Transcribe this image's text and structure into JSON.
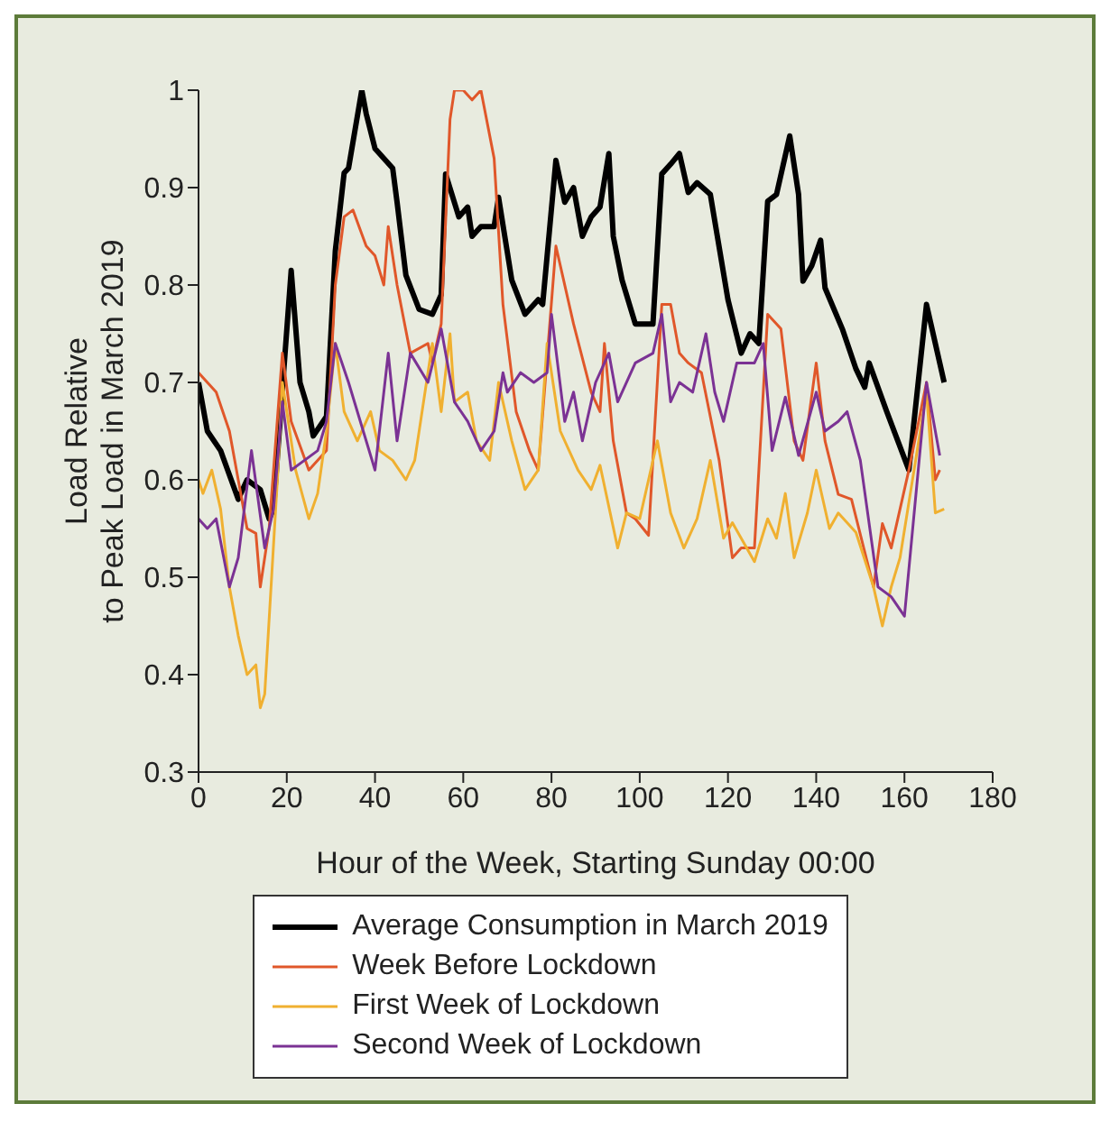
{
  "chart_data": {
    "type": "line",
    "xlabel": "Hour of the Week, Starting Sunday 00:00",
    "ylabel": "Load Relative to Peak Load in March 2019",
    "xlim": [
      0,
      180
    ],
    "xticks": [
      0,
      20,
      40,
      60,
      80,
      100,
      120,
      140,
      160,
      180
    ],
    "ylim": [
      0.3,
      1
    ],
    "yticks": [
      0.3,
      0.4,
      0.5,
      0.6,
      0.7,
      0.8,
      0.9,
      1
    ],
    "grid": false,
    "legend": "bottom",
    "marker": "none",
    "line_style": "solid",
    "series": [
      {
        "name": "Average Consumption in March 2019",
        "color": "#000000",
        "x": [
          0,
          2,
          5,
          9,
          11,
          14,
          16,
          17,
          21,
          23,
          25,
          26,
          29,
          31,
          33,
          34,
          37,
          38,
          40,
          44,
          45,
          47,
          50,
          53,
          55,
          56,
          59,
          61,
          62,
          64,
          67,
          68,
          71,
          74,
          77,
          78,
          81,
          83,
          85,
          87,
          89,
          91,
          93,
          94,
          96,
          99,
          103,
          105,
          107,
          109,
          111,
          113,
          116,
          120,
          123,
          125,
          127,
          129,
          131,
          134,
          136,
          137,
          139,
          141,
          142,
          146,
          149,
          151,
          152,
          156,
          161,
          165,
          169
        ],
        "values": [
          0.7,
          0.65,
          0.63,
          0.58,
          0.6,
          0.59,
          0.56,
          0.57,
          0.815,
          0.7,
          0.67,
          0.645,
          0.665,
          0.835,
          0.915,
          0.92,
          1.0,
          0.976,
          0.94,
          0.92,
          0.885,
          0.81,
          0.775,
          0.77,
          0.79,
          0.914,
          0.87,
          0.88,
          0.85,
          0.86,
          0.86,
          0.89,
          0.805,
          0.77,
          0.785,
          0.78,
          0.928,
          0.885,
          0.9,
          0.85,
          0.87,
          0.88,
          0.935,
          0.85,
          0.805,
          0.76,
          0.76,
          0.914,
          0.924,
          0.935,
          0.895,
          0.905,
          0.893,
          0.785,
          0.73,
          0.75,
          0.74,
          0.886,
          0.893,
          0.953,
          0.893,
          0.804,
          0.82,
          0.846,
          0.797,
          0.754,
          0.714,
          0.695,
          0.72,
          0.67,
          0.61,
          0.78,
          0.7
        ]
      },
      {
        "name": "Week Before Lockdown",
        "color": "#e0572a",
        "x": [
          0,
          4,
          7,
          9,
          11,
          13,
          14,
          16,
          19,
          21,
          25,
          29,
          31,
          33,
          35,
          38,
          40,
          42,
          43,
          45,
          48,
          52,
          53,
          55,
          57,
          58,
          60,
          62,
          64,
          67,
          69,
          72,
          75,
          77,
          81,
          85,
          89,
          91,
          92,
          94,
          97,
          99,
          102,
          105,
          107,
          109,
          111,
          114,
          118,
          121,
          123,
          126,
          129,
          132,
          135,
          137,
          140,
          142,
          145,
          148,
          153,
          155,
          157,
          161,
          165,
          167,
          168
        ],
        "values": [
          0.71,
          0.69,
          0.65,
          0.6,
          0.55,
          0.545,
          0.49,
          0.55,
          0.73,
          0.66,
          0.61,
          0.63,
          0.8,
          0.87,
          0.877,
          0.84,
          0.83,
          0.8,
          0.86,
          0.8,
          0.73,
          0.74,
          0.72,
          0.76,
          0.97,
          1.0,
          1.0,
          0.99,
          1.0,
          0.93,
          0.78,
          0.67,
          0.63,
          0.61,
          0.84,
          0.76,
          0.69,
          0.67,
          0.74,
          0.64,
          0.566,
          0.56,
          0.543,
          0.78,
          0.78,
          0.73,
          0.72,
          0.71,
          0.62,
          0.52,
          0.53,
          0.53,
          0.77,
          0.755,
          0.64,
          0.62,
          0.72,
          0.64,
          0.585,
          0.58,
          0.49,
          0.555,
          0.53,
          0.61,
          0.7,
          0.6,
          0.61
        ]
      },
      {
        "name": "First Week of Lockdown",
        "color": "#f0b030",
        "x": [
          0,
          1,
          3,
          5,
          7,
          9,
          11,
          13,
          14,
          15,
          18,
          19,
          22,
          25,
          27,
          29,
          31,
          33,
          36,
          39,
          41,
          44,
          47,
          49,
          53,
          55,
          57,
          58,
          61,
          63,
          66,
          68,
          71,
          74,
          77,
          79,
          82,
          86,
          89,
          91,
          95,
          97,
          100,
          102,
          104,
          107,
          110,
          113,
          116,
          119,
          121,
          126,
          129,
          131,
          133,
          135,
          138,
          140,
          143,
          145,
          149,
          153,
          155,
          157,
          159,
          165,
          167,
          169
        ],
        "values": [
          0.6,
          0.586,
          0.61,
          0.57,
          0.49,
          0.44,
          0.4,
          0.41,
          0.366,
          0.38,
          0.61,
          0.7,
          0.61,
          0.56,
          0.586,
          0.65,
          0.74,
          0.67,
          0.64,
          0.67,
          0.63,
          0.62,
          0.6,
          0.62,
          0.74,
          0.67,
          0.75,
          0.68,
          0.69,
          0.64,
          0.62,
          0.7,
          0.64,
          0.59,
          0.61,
          0.74,
          0.65,
          0.61,
          0.59,
          0.615,
          0.53,
          0.566,
          0.56,
          0.6,
          0.64,
          0.566,
          0.53,
          0.56,
          0.62,
          0.54,
          0.556,
          0.516,
          0.56,
          0.54,
          0.586,
          0.52,
          0.566,
          0.61,
          0.55,
          0.566,
          0.546,
          0.49,
          0.45,
          0.49,
          0.52,
          0.69,
          0.566,
          0.57
        ]
      },
      {
        "name": "Second Week of Lockdown",
        "color": "#7b3294",
        "x": [
          0,
          2,
          4,
          7,
          9,
          12,
          15,
          17,
          19,
          21,
          24,
          27,
          29,
          31,
          34,
          38,
          40,
          43,
          45,
          48,
          52,
          55,
          58,
          61,
          64,
          67,
          69,
          70,
          73,
          76,
          79,
          80,
          83,
          85,
          87,
          90,
          93,
          95,
          99,
          103,
          105,
          107,
          109,
          112,
          115,
          117,
          119,
          122,
          126,
          128,
          130,
          133,
          136,
          140,
          142,
          145,
          147,
          150,
          154,
          157,
          160,
          165,
          168
        ],
        "values": [
          0.56,
          0.55,
          0.56,
          0.49,
          0.52,
          0.63,
          0.53,
          0.57,
          0.68,
          0.61,
          0.62,
          0.63,
          0.66,
          0.74,
          0.7,
          0.64,
          0.61,
          0.73,
          0.64,
          0.73,
          0.7,
          0.755,
          0.68,
          0.66,
          0.63,
          0.65,
          0.71,
          0.69,
          0.71,
          0.7,
          0.71,
          0.77,
          0.66,
          0.69,
          0.64,
          0.7,
          0.73,
          0.68,
          0.72,
          0.73,
          0.77,
          0.68,
          0.7,
          0.69,
          0.75,
          0.69,
          0.66,
          0.72,
          0.72,
          0.74,
          0.63,
          0.685,
          0.625,
          0.69,
          0.65,
          0.66,
          0.67,
          0.62,
          0.49,
          0.48,
          0.46,
          0.7,
          0.625
        ]
      }
    ]
  }
}
